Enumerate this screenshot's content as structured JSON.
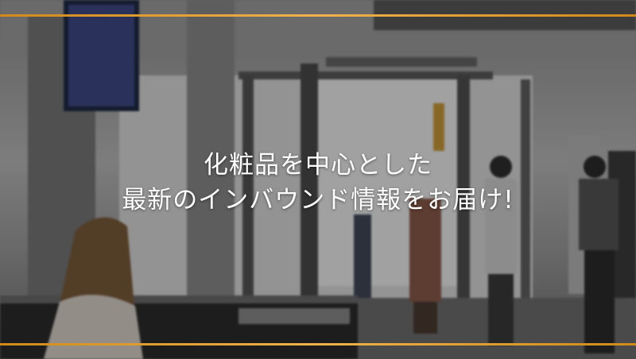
{
  "headline": {
    "line1": "化粧品を中心とした",
    "line2": "最新のインバウンド情報をお届け!"
  },
  "colors": {
    "accent_line": "#e9a534",
    "text": "#ffffff"
  }
}
